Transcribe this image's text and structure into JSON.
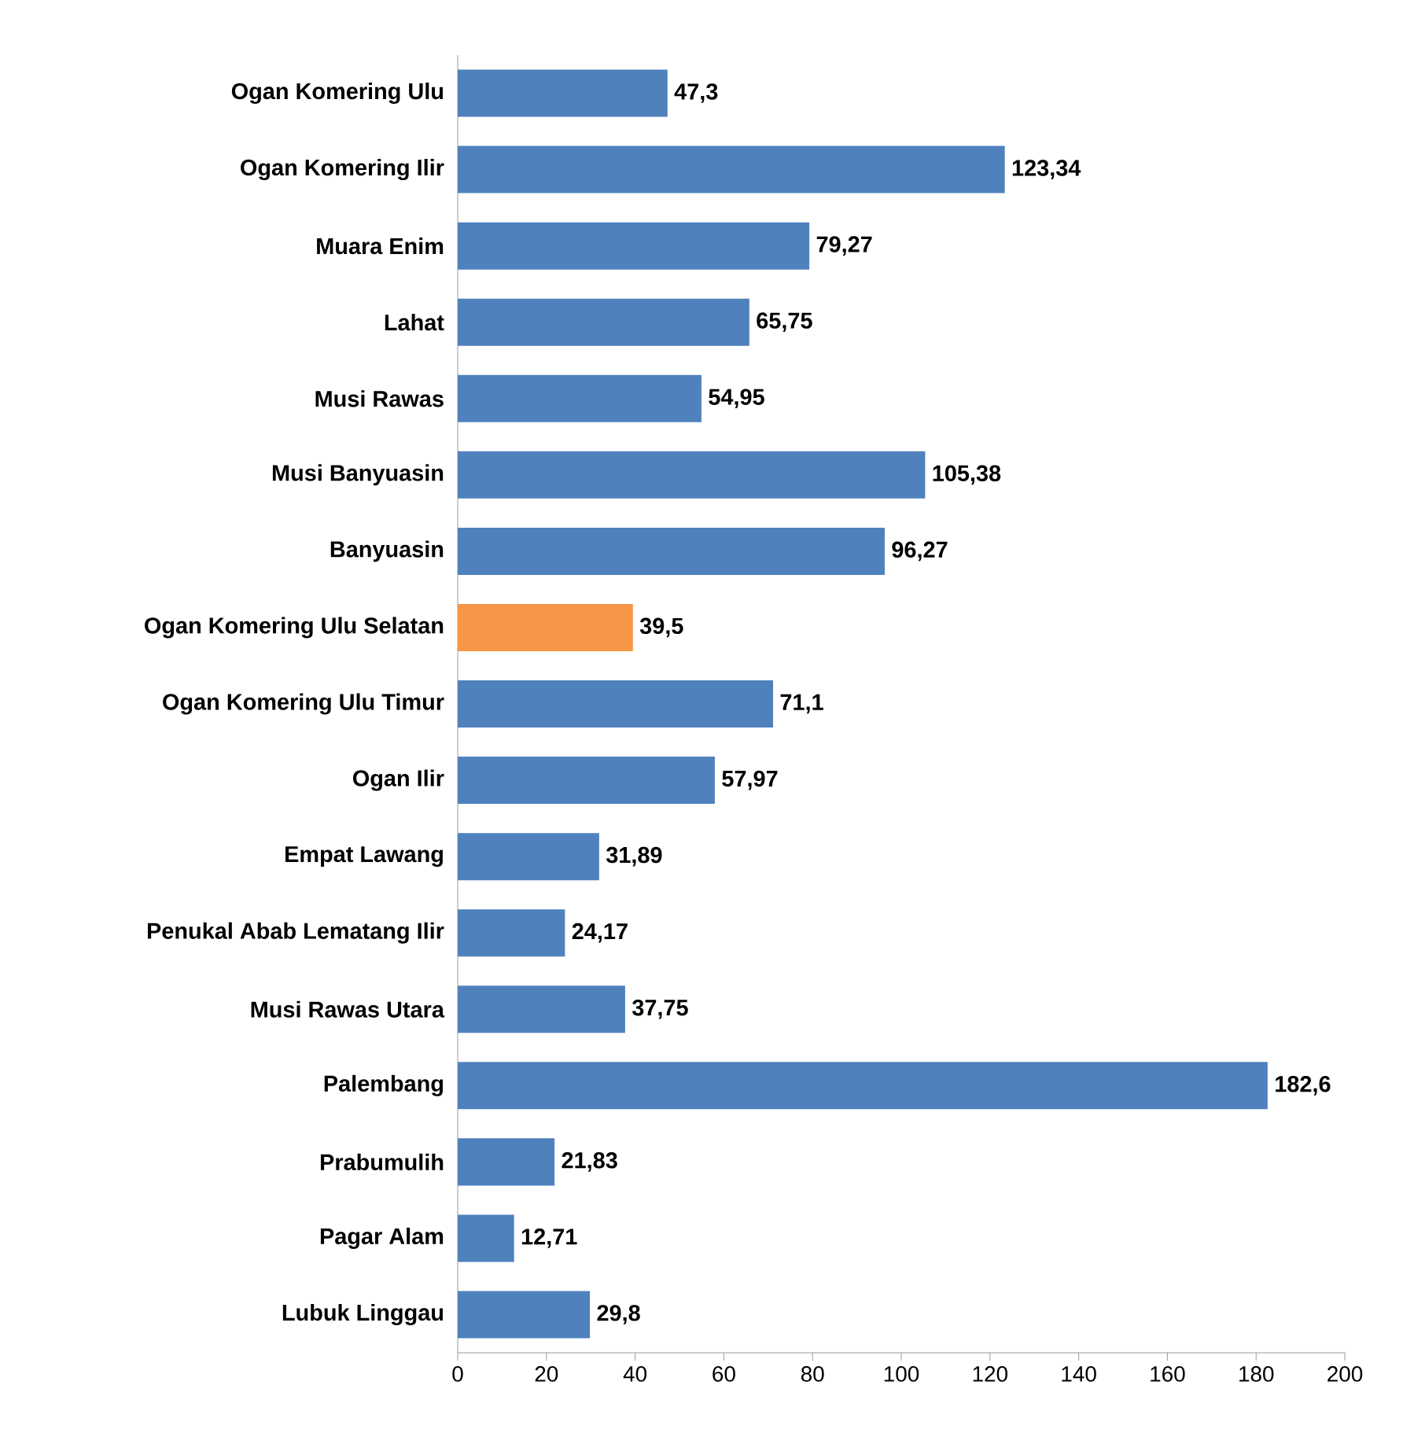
{
  "chart_data": {
    "type": "bar",
    "orientation": "horizontal",
    "categories": [
      "Ogan Komering Ulu",
      "Ogan Komering Ilir",
      "Muara Enim",
      "Lahat",
      "Musi Rawas",
      "Musi Banyuasin",
      "Banyuasin",
      "Ogan Komering Ulu Selatan",
      "Ogan Komering Ulu Timur",
      "Ogan Ilir",
      "Empat Lawang",
      "Penukal Abab Lematang Ilir",
      "Musi Rawas Utara",
      "Palembang",
      "Prabumulih",
      "Pagar Alam",
      "Lubuk Linggau"
    ],
    "values": [
      47.3,
      123.34,
      79.27,
      65.75,
      54.95,
      105.38,
      96.27,
      39.5,
      71.1,
      57.97,
      31.89,
      24.17,
      37.75,
      182.6,
      21.83,
      12.71,
      29.8
    ],
    "value_labels": [
      "47,3",
      "123,34",
      "79,27",
      "65,75",
      "54,95",
      "105,38",
      "96,27",
      "39,5",
      "71,1",
      "57,97",
      "31,89",
      "24,17",
      "37,75",
      "182,6",
      "21,83",
      "12,71",
      "29,8"
    ],
    "colors": [
      "#4f81bd",
      "#4f81bd",
      "#4f81bd",
      "#4f81bd",
      "#4f81bd",
      "#4f81bd",
      "#4f81bd",
      "#f79646",
      "#4f81bd",
      "#4f81bd",
      "#4f81bd",
      "#4f81bd",
      "#4f81bd",
      "#4f81bd",
      "#4f81bd",
      "#4f81bd",
      "#4f81bd"
    ],
    "xlim": [
      0,
      200
    ],
    "xticks": [
      0,
      20,
      40,
      60,
      80,
      100,
      120,
      140,
      160,
      180,
      200
    ],
    "grid": false
  }
}
